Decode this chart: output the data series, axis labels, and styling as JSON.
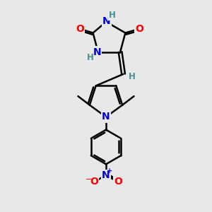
{
  "bg_color": "#e8e8e8",
  "bond_color": "#000000",
  "bond_width": 1.8,
  "atom_colors": {
    "O": "#ff0000",
    "N": "#0000cc",
    "H": "#4a9090",
    "C": "#000000"
  },
  "figsize": [
    3.0,
    3.0
  ],
  "dpi": 100
}
